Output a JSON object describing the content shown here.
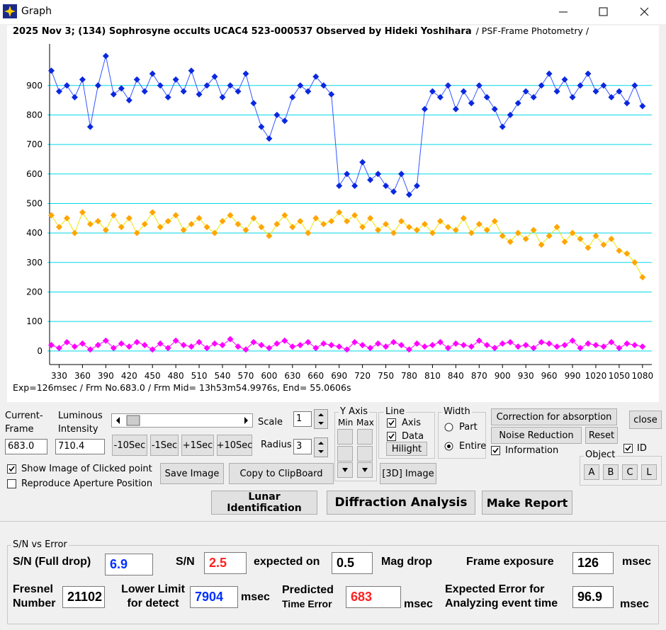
{
  "window": {
    "title": "Graph"
  },
  "chart_data": {
    "type": "line",
    "title": "2025 Nov 3; (134) Sophrosyne occults UCAC4 523-000537 Observed by Hideki Yoshihara",
    "subtitle": "/ PSF-Frame Photometry /",
    "footer": "Exp=126msec / Frm No.683.0 / Frm Mid= 13h53m54.9976s,  End= 55.0606s",
    "x": [
      320,
      330,
      340,
      350,
      360,
      370,
      380,
      390,
      400,
      410,
      420,
      430,
      440,
      450,
      460,
      470,
      480,
      490,
      500,
      510,
      520,
      530,
      540,
      550,
      560,
      570,
      580,
      590,
      600,
      610,
      620,
      630,
      640,
      650,
      660,
      670,
      680,
      690,
      700,
      710,
      720,
      730,
      740,
      750,
      760,
      770,
      780,
      790,
      800,
      810,
      820,
      830,
      840,
      850,
      860,
      870,
      880,
      890,
      900,
      910,
      920,
      930,
      940,
      950,
      960,
      970,
      980,
      990,
      1000,
      1010,
      1020,
      1030,
      1040,
      1050,
      1060,
      1070,
      1080
    ],
    "series": [
      {
        "color": "#0a28e0",
        "line_color": "#3355ff",
        "values": [
          950,
          880,
          900,
          860,
          920,
          760,
          900,
          1000,
          870,
          890,
          850,
          920,
          880,
          940,
          900,
          860,
          920,
          880,
          950,
          870,
          900,
          930,
          860,
          900,
          880,
          940,
          840,
          760,
          720,
          800,
          780,
          860,
          900,
          880,
          930,
          900,
          870,
          560,
          600,
          560,
          640,
          580,
          600,
          560,
          540,
          600,
          530,
          560,
          820,
          880,
          860,
          900,
          820,
          880,
          840,
          900,
          860,
          820,
          760,
          800,
          840,
          880,
          860,
          900,
          940,
          880,
          920,
          860,
          900,
          940,
          880,
          900,
          860,
          880,
          840,
          900,
          830
        ]
      },
      {
        "color": "#ffa500",
        "line_color": "#e8e800",
        "values": [
          460,
          420,
          450,
          400,
          470,
          430,
          440,
          410,
          460,
          420,
          450,
          400,
          430,
          470,
          420,
          440,
          460,
          410,
          430,
          450,
          420,
          400,
          440,
          460,
          430,
          410,
          450,
          420,
          390,
          430,
          460,
          420,
          440,
          400,
          450,
          430,
          440,
          470,
          440,
          460,
          420,
          450,
          410,
          430,
          400,
          440,
          420,
          410,
          430,
          400,
          440,
          420,
          410,
          450,
          400,
          430,
          410,
          440,
          390,
          370,
          400,
          380,
          410,
          360,
          390,
          420,
          370,
          400,
          380,
          350,
          390,
          360,
          380,
          340,
          330,
          300,
          250
        ]
      },
      {
        "color": "#ff00ff",
        "line_color": "#ff00ff",
        "values": [
          20,
          10,
          30,
          15,
          25,
          5,
          20,
          35,
          10,
          25,
          15,
          30,
          20,
          5,
          25,
          10,
          35,
          20,
          15,
          30,
          10,
          25,
          20,
          40,
          15,
          5,
          30,
          20,
          10,
          25,
          35,
          15,
          20,
          30,
          10,
          25,
          20,
          15,
          5,
          30,
          20,
          10,
          25,
          15,
          30,
          20,
          5,
          25,
          15,
          20,
          30,
          10,
          25,
          20,
          15,
          35,
          20,
          10,
          25,
          30,
          15,
          20,
          10,
          30,
          25,
          15,
          20,
          35,
          10,
          25,
          20,
          15,
          30,
          10,
          25,
          20,
          15
        ]
      }
    ],
    "xlim": [
      315,
      1092
    ],
    "ylim": [
      -34,
      1041
    ],
    "xticks": [
      330,
      360,
      390,
      420,
      450,
      480,
      510,
      540,
      570,
      600,
      630,
      660,
      690,
      720,
      750,
      780,
      810,
      840,
      870,
      900,
      930,
      960,
      990,
      1020,
      1050,
      1080
    ],
    "yticks": [
      0,
      100,
      200,
      300,
      400,
      500,
      600,
      700,
      800,
      900
    ],
    "grid": true,
    "grid_color": "#00d8e8"
  },
  "controls": {
    "current_frame_label": "Current-\nFrame",
    "current_frame": "683.0",
    "luminous_label": "Luminous\nIntensity",
    "luminous": "710.4",
    "sec_buttons": [
      "-10Sec",
      "-1Sec",
      "+1Sec",
      "+10Sec"
    ],
    "scale_label": "Scale",
    "scale": "1",
    "radius_label": "Radius",
    "radius": "3",
    "yaxis_group": "Y Axis",
    "yaxis_min": "Min",
    "yaxis_max": "Max",
    "line_group": "Line",
    "line_axis": "Axis",
    "line_data": "Data",
    "hilight": "Hilight",
    "width_group": "Width",
    "part": "Part",
    "entire": "Entire",
    "correction": "Correction for absorption",
    "close": "close",
    "noise": "Noise Reduction",
    "reset": "Reset",
    "information": "Information",
    "id": "ID",
    "object_group": "Object",
    "objects": [
      "A",
      "B",
      "C",
      "L"
    ],
    "show_image": "Show Image of Clicked point",
    "reproduce": "Reproduce Aperture Position",
    "save_image": "Save Image",
    "copy": "Copy to ClipBoard",
    "image3d": "[3D] Image",
    "lunar": "Lunar Identification",
    "diffraction": "Diffraction Analysis",
    "report": "Make Report"
  },
  "sn_panel": {
    "group": "S/N vs Error",
    "sn_full_label": "S/N (Full drop)",
    "sn_full": "6.9",
    "sn_label": "S/N",
    "sn": "2.5",
    "expected_on": "expected on",
    "mag_drop_value": "0.5",
    "mag_drop": "Mag drop",
    "frame_exposure_label": "Frame exposure",
    "frame_exposure": "126",
    "msec": "msec",
    "fresnel_label": "Fresnel\nNumber",
    "fresnel": "21102",
    "lower_limit_label": "Lower Limit\nfor detect",
    "lower_limit": "7904",
    "predicted": "Predicted",
    "time_error": "Time Error",
    "predicted_value": "683",
    "expected_error_label": "Expected Error for\nAnalyzing event time",
    "expected_error": "96.9"
  }
}
